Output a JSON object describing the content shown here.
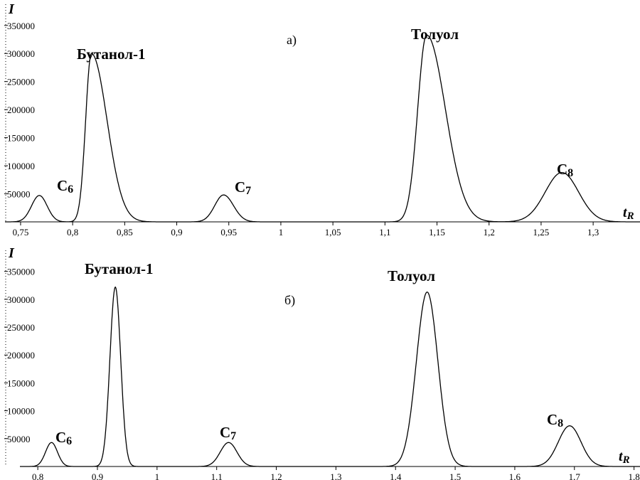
{
  "chart_data": [
    {
      "type": "line",
      "panel_label": "а)",
      "xlabel": "t",
      "xlabel_sub": "R",
      "ylabel": "I",
      "xlim": [
        0.735,
        1.345
      ],
      "ylim": [
        0,
        370000
      ],
      "xticks": [
        0.75,
        0.8,
        0.85,
        0.9,
        0.95,
        1,
        1.05,
        1.1,
        1.15,
        1.2,
        1.25,
        1.3
      ],
      "xtick_labels": [
        "0,75",
        "0,8",
        "0,85",
        "0,9",
        "0,95",
        "1",
        "1,05",
        "1,1",
        "1,15",
        "1,2",
        "1,25",
        "1,3"
      ],
      "yticks": [
        50000,
        100000,
        150000,
        200000,
        250000,
        300000,
        350000
      ],
      "ytick_labels": [
        "50000",
        "100000",
        "150000",
        "200000",
        "250000",
        "300000",
        "350000"
      ],
      "peaks": [
        {
          "label": "C",
          "label_sub": "6",
          "center": 0.768,
          "height": 47000,
          "sigma_left": 0.0075,
          "sigma_right": 0.0075
        },
        {
          "label": "Бутанол-1",
          "label_sub": "",
          "center": 0.818,
          "height": 300000,
          "sigma_left": 0.0055,
          "sigma_right": 0.015
        },
        {
          "label": "C",
          "label_sub": "7",
          "center": 0.945,
          "height": 48000,
          "sigma_left": 0.0085,
          "sigma_right": 0.0095
        },
        {
          "label": "Толуол",
          "label_sub": "",
          "center": 1.14,
          "height": 333000,
          "sigma_left": 0.0085,
          "sigma_right": 0.018
        },
        {
          "label": "C",
          "label_sub": "8",
          "center": 1.27,
          "height": 88000,
          "sigma_left": 0.016,
          "sigma_right": 0.016
        }
      ]
    },
    {
      "type": "line",
      "panel_label": "б)",
      "xlabel": "t",
      "xlabel_sub": "R",
      "ylabel": "I",
      "xlim": [
        0.77,
        1.81
      ],
      "ylim": [
        0,
        370000
      ],
      "xticks": [
        0.8,
        0.9,
        1,
        1.1,
        1.2,
        1.3,
        1.4,
        1.5,
        1.6,
        1.7,
        1.8
      ],
      "xtick_labels": [
        "0,8",
        "0,9",
        "1",
        "1,1",
        "1,2",
        "1,3",
        "1,4",
        "1,5",
        "1,6",
        "1,7",
        "1,8"
      ],
      "yticks": [
        50000,
        100000,
        150000,
        200000,
        250000,
        300000,
        350000
      ],
      "ytick_labels": [
        "50000",
        "100000",
        "150000",
        "200000",
        "250000",
        "300000",
        "350000"
      ],
      "peaks": [
        {
          "label": "C",
          "label_sub": "6",
          "center": 0.823,
          "height": 43000,
          "sigma_left": 0.01,
          "sigma_right": 0.01
        },
        {
          "label": "Бутанол-1",
          "label_sub": "",
          "center": 0.93,
          "height": 322000,
          "sigma_left": 0.009,
          "sigma_right": 0.009
        },
        {
          "label": "C",
          "label_sub": "7",
          "center": 1.12,
          "height": 43000,
          "sigma_left": 0.014,
          "sigma_right": 0.014
        },
        {
          "label": "Толуол",
          "label_sub": "",
          "center": 1.453,
          "height": 313000,
          "sigma_left": 0.018,
          "sigma_right": 0.018
        },
        {
          "label": "C",
          "label_sub": "8",
          "center": 1.692,
          "height": 73000,
          "sigma_left": 0.019,
          "sigma_right": 0.019
        }
      ]
    }
  ]
}
